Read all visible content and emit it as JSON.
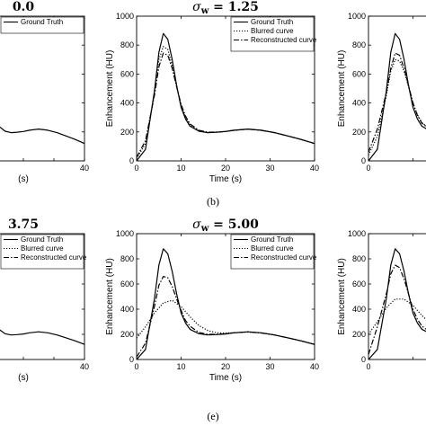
{
  "chart_data": [
    {
      "type": "line",
      "title": "0.0",
      "title_prefix": "",
      "xlabel": "(s)",
      "ylabel": "",
      "xlim": [
        0,
        40
      ],
      "ylim": [
        0,
        1000
      ],
      "xticks": [
        "",
        "",
        "",
        "",
        "40"
      ],
      "yticks": [
        "",
        "",
        "",
        "",
        "",
        ""
      ],
      "legend": [
        "Ground Truth",
        "",
        ""
      ],
      "series": [
        {
          "name": "Ground Truth",
          "style": "solid",
          "x": [
            0,
            2,
            4,
            5,
            6,
            7,
            8,
            9,
            10,
            11,
            12,
            14,
            16,
            18,
            20,
            22,
            25,
            28,
            31,
            34,
            37,
            40
          ],
          "y": [
            0,
            80,
            480,
            750,
            880,
            840,
            700,
            520,
            370,
            290,
            240,
            205,
            195,
            198,
            203,
            212,
            220,
            212,
            195,
            172,
            148,
            120
          ]
        }
      ]
    },
    {
      "type": "line",
      "title": "= 1.25",
      "title_prefix": "σ",
      "title_sub": "w",
      "xlabel": "Time (s)",
      "ylabel": "Enhancement (HU)",
      "xlim": [
        0,
        40
      ],
      "ylim": [
        0,
        1000
      ],
      "xticks": [
        "0",
        "10",
        "20",
        "30",
        "40"
      ],
      "yticks": [
        "0",
        "200",
        "400",
        "600",
        "800",
        "1000"
      ],
      "legend": [
        "Ground Truth",
        "Blurred curve",
        "Reconstructed curve"
      ],
      "series": [
        {
          "name": "Ground Truth",
          "style": "solid",
          "x": [
            0,
            2,
            4,
            5,
            6,
            7,
            8,
            9,
            10,
            11,
            12,
            14,
            16,
            18,
            20,
            22,
            25,
            28,
            31,
            34,
            37,
            40
          ],
          "y": [
            0,
            80,
            480,
            750,
            880,
            840,
            700,
            520,
            370,
            290,
            240,
            205,
            195,
            198,
            203,
            212,
            220,
            212,
            195,
            172,
            148,
            120
          ]
        },
        {
          "name": "Blurred curve",
          "style": "dotted",
          "x": [
            0,
            2,
            4,
            5,
            6,
            7,
            8,
            9,
            10,
            11,
            12,
            14,
            16,
            18,
            20,
            22,
            25,
            28,
            31,
            34,
            37,
            40
          ],
          "y": [
            15,
            120,
            470,
            700,
            790,
            770,
            660,
            510,
            380,
            300,
            250,
            210,
            197,
            199,
            204,
            212,
            219,
            211,
            195,
            172,
            148,
            120
          ]
        },
        {
          "name": "Reconstructed curve",
          "style": "dashdot",
          "x": [
            0,
            2,
            4,
            5,
            6,
            7,
            8,
            9,
            10,
            11,
            12,
            14,
            16,
            18,
            20,
            22,
            25,
            28,
            31,
            34,
            37,
            40
          ],
          "y": [
            25,
            140,
            450,
            650,
            745,
            730,
            640,
            510,
            390,
            310,
            255,
            212,
            198,
            199,
            204,
            212,
            219,
            211,
            195,
            172,
            148,
            120
          ]
        }
      ]
    },
    {
      "type": "line",
      "title": "",
      "title_prefix": "",
      "xlabel": "",
      "ylabel": "Enhancement (HU)",
      "xlim": [
        0,
        40
      ],
      "ylim": [
        0,
        1000
      ],
      "xticks": [
        "0",
        "",
        "",
        "",
        ""
      ],
      "yticks": [
        "0",
        "200",
        "400",
        "600",
        "800",
        "1000"
      ],
      "legend": [
        "",
        "",
        ""
      ],
      "series": [
        {
          "name": "Ground Truth",
          "style": "solid",
          "x": [
            0,
            2,
            4,
            5,
            6,
            7,
            8,
            9,
            10,
            11,
            12,
            14,
            16,
            18,
            20,
            22,
            25,
            28,
            31,
            34,
            37,
            40
          ],
          "y": [
            0,
            80,
            480,
            750,
            880,
            840,
            700,
            520,
            370,
            290,
            240,
            205,
            195,
            198,
            203,
            212,
            220,
            212,
            195,
            172,
            148,
            120
          ]
        },
        {
          "name": "Blurred curve",
          "style": "dotted",
          "x": [
            0,
            2,
            4,
            5,
            6,
            7,
            8,
            9,
            10,
            11,
            12,
            14,
            16,
            18,
            20,
            22,
            25,
            28,
            31,
            34,
            37,
            40
          ],
          "y": [
            40,
            170,
            450,
            620,
            700,
            690,
            620,
            510,
            400,
            320,
            265,
            215,
            199,
            200,
            204,
            212,
            219,
            211,
            195,
            172,
            148,
            120
          ]
        },
        {
          "name": "Reconstructed curve",
          "style": "dashdot",
          "x": [
            0,
            2,
            4,
            5,
            6,
            7,
            8,
            9,
            10,
            11,
            12,
            14,
            16,
            18,
            20,
            22,
            25,
            28,
            31,
            34,
            37,
            40
          ],
          "y": [
            60,
            220,
            470,
            640,
            745,
            730,
            640,
            520,
            400,
            315,
            260,
            213,
            198,
            199,
            204,
            212,
            219,
            211,
            195,
            172,
            148,
            120
          ]
        }
      ]
    },
    {
      "type": "line",
      "title": "3.75",
      "title_prefix": "",
      "xlabel": "(s)",
      "ylabel": "",
      "xlim": [
        0,
        40
      ],
      "ylim": [
        0,
        1000
      ],
      "xticks": [
        "",
        "",
        "",
        "",
        "40"
      ],
      "yticks": [
        "",
        "",
        "",
        "",
        "",
        ""
      ],
      "legend": [
        "Ground Truth",
        "Blurred curve",
        "Reconstructed curve"
      ],
      "series": [
        {
          "name": "Ground Truth",
          "style": "solid",
          "x": [
            0,
            2,
            4,
            5,
            6,
            7,
            8,
            9,
            10,
            11,
            12,
            14,
            16,
            18,
            20,
            22,
            25,
            28,
            31,
            34,
            37,
            40
          ],
          "y": [
            0,
            80,
            480,
            750,
            880,
            840,
            700,
            520,
            370,
            290,
            240,
            205,
            195,
            198,
            203,
            212,
            220,
            212,
            195,
            172,
            148,
            120
          ]
        }
      ]
    },
    {
      "type": "line",
      "title": "= 5.00",
      "title_prefix": "σ",
      "title_sub": "w",
      "xlabel": "Time (s)",
      "ylabel": "Enhancement (HU)",
      "xlim": [
        0,
        40
      ],
      "ylim": [
        0,
        1000
      ],
      "xticks": [
        "0",
        "10",
        "20",
        "30",
        "40"
      ],
      "yticks": [
        "0",
        "200",
        "400",
        "600",
        "800",
        "1000"
      ],
      "legend": [
        "Ground Truth",
        "Blurred curve",
        "Reconstructed curve"
      ],
      "series": [
        {
          "name": "Ground Truth",
          "style": "solid",
          "x": [
            0,
            2,
            4,
            5,
            6,
            7,
            8,
            9,
            10,
            11,
            12,
            14,
            16,
            18,
            20,
            22,
            25,
            28,
            31,
            34,
            37,
            40
          ],
          "y": [
            0,
            80,
            480,
            750,
            880,
            840,
            700,
            520,
            370,
            290,
            240,
            205,
            195,
            198,
            203,
            212,
            220,
            212,
            195,
            172,
            148,
            120
          ]
        },
        {
          "name": "Blurred curve",
          "style": "dotted",
          "x": [
            0,
            2,
            4,
            6,
            8,
            10,
            12,
            14,
            16,
            18,
            20,
            22,
            25,
            28,
            31,
            34,
            37,
            40
          ],
          "y": [
            170,
            260,
            370,
            450,
            470,
            420,
            340,
            270,
            230,
            212,
            210,
            213,
            218,
            211,
            195,
            172,
            148,
            120
          ]
        },
        {
          "name": "Reconstructed curve",
          "style": "dashdot",
          "x": [
            0,
            2,
            4,
            5,
            6,
            7,
            8,
            9,
            10,
            11,
            12,
            14,
            16,
            18,
            20,
            22,
            25,
            28,
            31,
            34,
            37,
            40
          ],
          "y": [
            20,
            130,
            420,
            590,
            660,
            650,
            580,
            480,
            390,
            310,
            265,
            215,
            200,
            201,
            205,
            213,
            219,
            211,
            195,
            172,
            148,
            120
          ]
        }
      ]
    },
    {
      "type": "line",
      "title": "",
      "title_prefix": "",
      "xlabel": "",
      "ylabel": "Enhancement (HU)",
      "xlim": [
        0,
        40
      ],
      "ylim": [
        0,
        1000
      ],
      "xticks": [
        "0",
        "",
        "",
        "",
        ""
      ],
      "yticks": [
        "0",
        "200",
        "400",
        "600",
        "800",
        "1000"
      ],
      "legend": [
        "",
        "",
        ""
      ],
      "series": [
        {
          "name": "Ground Truth",
          "style": "solid",
          "x": [
            0,
            2,
            4,
            5,
            6,
            7,
            8,
            9,
            10,
            11,
            12,
            14,
            16,
            18,
            20,
            22,
            25,
            28,
            31,
            34,
            37,
            40
          ],
          "y": [
            0,
            80,
            480,
            750,
            880,
            840,
            700,
            520,
            370,
            290,
            240,
            205,
            195,
            198,
            203,
            212,
            220,
            212,
            195,
            172,
            148,
            120
          ]
        },
        {
          "name": "Blurred curve",
          "style": "dotted",
          "x": [
            0,
            2,
            4,
            6,
            8,
            10,
            12,
            14,
            16,
            18,
            20,
            22,
            25,
            28,
            31,
            34,
            37,
            40
          ],
          "y": [
            200,
            300,
            410,
            480,
            480,
            430,
            350,
            280,
            235,
            214,
            210,
            213,
            218,
            211,
            195,
            172,
            148,
            120
          ]
        },
        {
          "name": "Reconstructed curve",
          "style": "dashdot",
          "x": [
            0,
            2,
            4,
            5,
            6,
            7,
            8,
            9,
            10,
            11,
            12,
            14,
            16,
            18,
            20,
            22,
            25,
            28,
            31,
            34,
            37,
            40
          ],
          "y": [
            40,
            260,
            520,
            680,
            750,
            730,
            640,
            520,
            400,
            320,
            265,
            215,
            200,
            201,
            205,
            213,
            219,
            211,
            195,
            172,
            148,
            120
          ]
        }
      ]
    }
  ],
  "captions": [
    "(b)",
    "(e)"
  ]
}
